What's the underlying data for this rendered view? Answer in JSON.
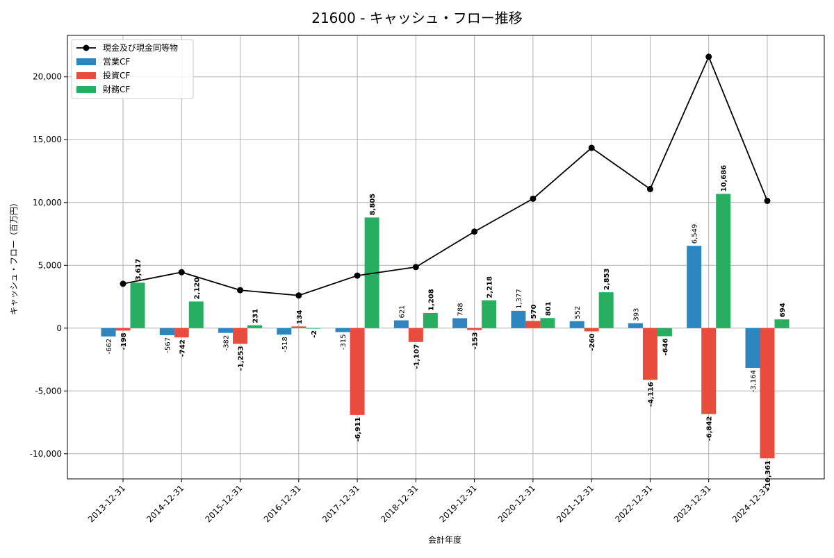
{
  "chart_data": {
    "type": "bar",
    "title": "21600 - キャッシュ・フロー推移",
    "xlabel": "会計年度",
    "ylabel": "キャッシュ・フロー（百万円）",
    "ylim": [
      -12000,
      23300
    ],
    "yticks": [
      -10000,
      -5000,
      0,
      5000,
      10000,
      15000,
      20000
    ],
    "ytick_labels": [
      "-10,000",
      "-5,000",
      "0",
      "5,000",
      "10,000",
      "15,000",
      "20,000"
    ],
    "grid": true,
    "legend_position": "top-left",
    "categories": [
      "2013-12-31",
      "2014-12-31",
      "2015-12-31",
      "2016-12-31",
      "2017-12-31",
      "2018-12-31",
      "2019-12-31",
      "2020-12-31",
      "2021-12-31",
      "2022-12-31",
      "2023-12-31",
      "2024-12-31"
    ],
    "series": [
      {
        "name": "営業CF",
        "kind": "bar",
        "color": "#2e86c1",
        "values": [
          -662,
          -567,
          -382,
          -518,
          -315,
          621,
          788,
          1377,
          552,
          393,
          6549,
          -3164
        ],
        "labels": [
          "-662",
          "-567",
          "-382",
          "-518",
          "-315",
          "621",
          "788",
          "1,377",
          "552",
          "393",
          "6,549",
          "-3,164"
        ]
      },
      {
        "name": "投資CF",
        "kind": "bar",
        "color": "#e74c3c",
        "values": [
          -198,
          -742,
          -1253,
          134,
          -6911,
          -1107,
          -153,
          570,
          -260,
          -4116,
          -6842,
          -10361
        ],
        "labels": [
          "-198",
          "-742",
          "-1,253",
          "134",
          "-6,911",
          "-1,107",
          "-153",
          "570",
          "-260",
          "-4,116",
          "-6,842",
          "-10,361"
        ]
      },
      {
        "name": "財務CF",
        "kind": "bar",
        "color": "#27ae60",
        "values": [
          3617,
          2120,
          231,
          -2,
          8805,
          1208,
          2218,
          801,
          2853,
          -646,
          10686,
          694
        ],
        "labels": [
          "3,617",
          "2,120",
          "231",
          "-2",
          "8,805",
          "1,208",
          "2,218",
          "801",
          "2,853",
          "-646",
          "10,686",
          "694"
        ]
      },
      {
        "name": "現金及び現金同等物",
        "kind": "line",
        "color": "#000000",
        "values": [
          3530,
          4450,
          3020,
          2600,
          4180,
          4860,
          7680,
          10300,
          14350,
          11070,
          21600,
          10130
        ]
      }
    ]
  }
}
